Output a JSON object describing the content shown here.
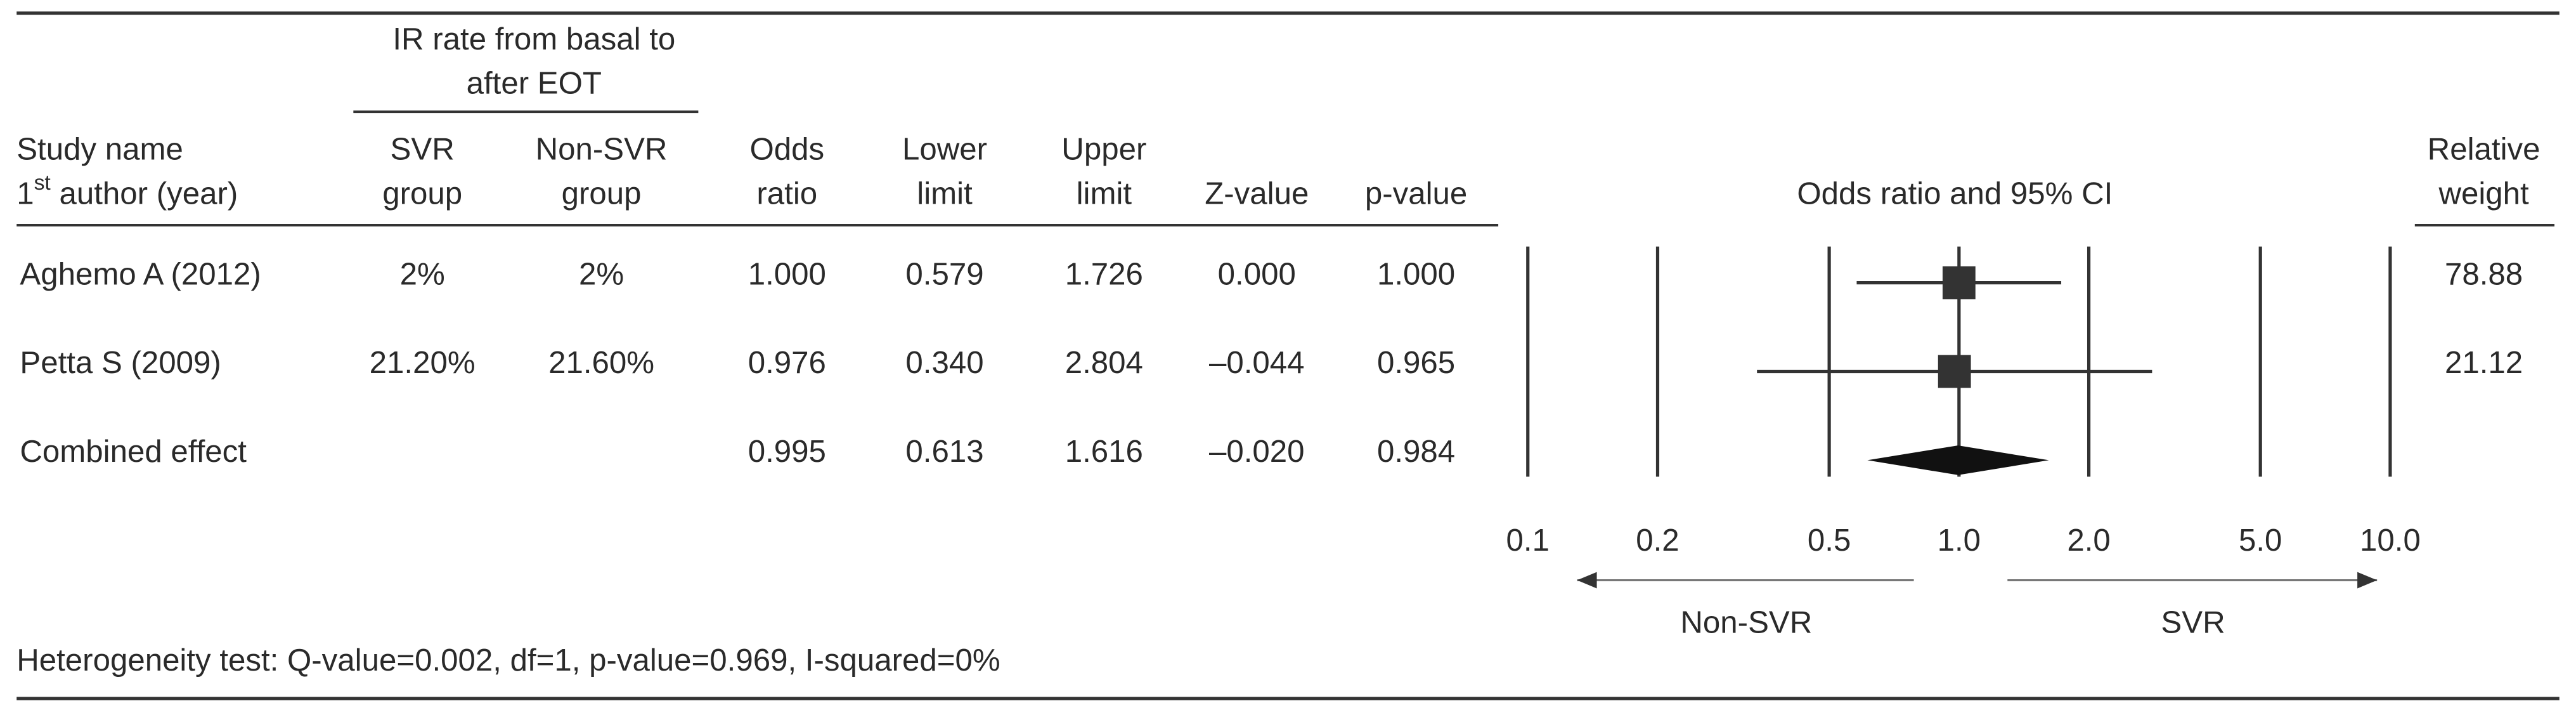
{
  "table": {
    "group_header": [
      "IR rate from basal to",
      "after EOT"
    ],
    "study_header": {
      "line1": "Study name",
      "line2_num": "1",
      "line2_sup": "st",
      "line2_rest": " author (year)"
    },
    "columns": [
      [
        "SVR",
        "group"
      ],
      [
        "Non-SVR",
        "group"
      ],
      [
        "Odds",
        "ratio"
      ],
      [
        "Lower",
        "limit"
      ],
      [
        "Upper",
        "limit"
      ],
      [
        "Z-value"
      ],
      [
        "p-value"
      ]
    ],
    "rows": [
      [
        "Aghemo A (2012)",
        "2%",
        "2%",
        "1.000",
        "0.579",
        "1.726",
        "0.000",
        "1.000"
      ],
      [
        "Petta S (2009)",
        "21.20%",
        "21.60%",
        "0.976",
        "0.340",
        "2.804",
        "–0.044",
        "0.965"
      ],
      [
        "Combined effect",
        null,
        null,
        "0.995",
        "0.613",
        "1.616",
        "–0.020",
        "0.984"
      ]
    ]
  },
  "plot": {
    "title": "Odds ratio and 95% CI",
    "xscale": "log",
    "xlim": [
      0.1,
      10
    ],
    "xticks": [
      0.1,
      0.2,
      0.5,
      {
        "value": 1,
        "label": "1.0"
      },
      {
        "value": 2,
        "label": "2.0"
      },
      {
        "value": 5,
        "label": "5.0"
      },
      {
        "value": 10,
        "label": "10.0"
      }
    ],
    "left_label": "Non-SVR",
    "right_label": "SVR",
    "color": "#333333"
  },
  "weight": {
    "header": [
      "Relative",
      "weight"
    ],
    "values": [
      "78.88",
      "21.12"
    ]
  },
  "footnote": "Heterogeneity test: Q-value=0.002, df=1, p-value=0.969, I-squared=0%"
}
